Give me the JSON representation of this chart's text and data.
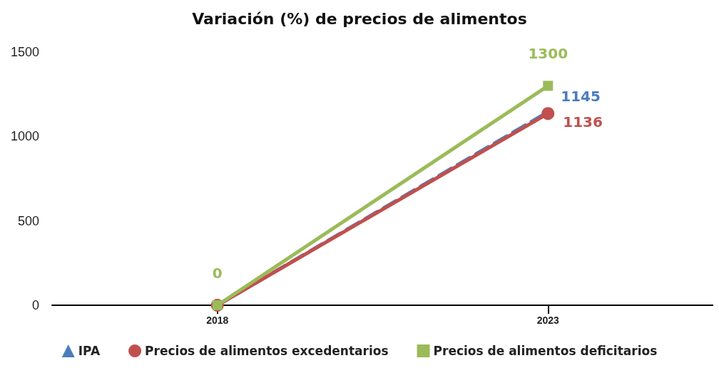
{
  "chart_data": {
    "type": "line",
    "title": "Variación (%) de precios de alimentos",
    "categories": [
      "2018",
      "2023"
    ],
    "series": [
      {
        "name": "IPA",
        "color": "#4a7ebb",
        "values": [
          0,
          1145
        ],
        "marker": "triangle",
        "line_style": "dashed",
        "value_labels": [
          null,
          "1145"
        ]
      },
      {
        "name": "Precios de alimentos excedentarios",
        "color": "#c0504d",
        "values": [
          0,
          1136
        ],
        "marker": "circle",
        "line_style": "solid",
        "value_labels": [
          null,
          "1136"
        ]
      },
      {
        "name": "Precios de alimentos deficitarios",
        "color": "#9bbb59",
        "values": [
          0,
          1300
        ],
        "marker": "square",
        "line_style": "solid",
        "value_labels": [
          "0",
          "1300"
        ]
      }
    ],
    "ylim": [
      0,
      1500
    ],
    "yticks": [
      0,
      500,
      1000,
      1500
    ],
    "grid": false,
    "legend": "bottom"
  }
}
